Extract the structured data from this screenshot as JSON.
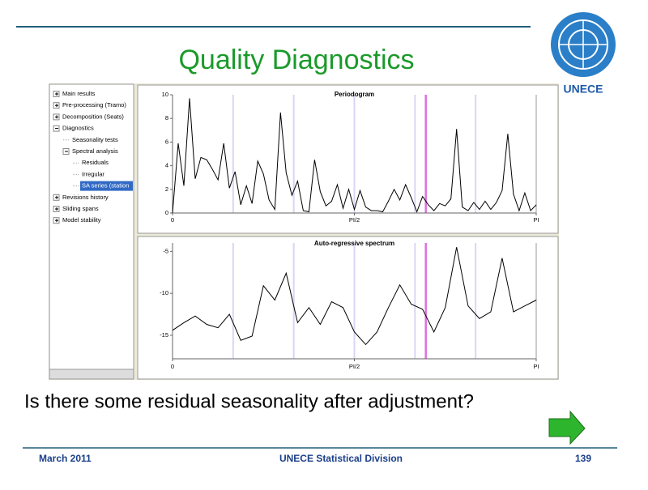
{
  "header": {
    "title": "Quality Diagnostics",
    "logo_label": "UNECE"
  },
  "tree": {
    "items": [
      "Main results",
      "Pre-processing (Tramo)",
      "Decomposition (Seats)",
      "Diagnostics",
      "Seasonality tests",
      "Spectral analysis",
      "Residuals",
      "Irregular",
      "SA series (station",
      "Revisions history",
      "Sliding spans",
      "Model stability"
    ]
  },
  "chart_data": [
    {
      "type": "line",
      "title": "Periodogram",
      "color": "#000000",
      "x": [
        0,
        0.049,
        0.098,
        0.147,
        0.196,
        0.245,
        0.295,
        0.344,
        0.393,
        0.442,
        0.491,
        0.54,
        0.589,
        0.638,
        0.687,
        0.736,
        0.785,
        0.834,
        0.884,
        0.933,
        0.982,
        1.031,
        1.08,
        1.129,
        1.178,
        1.227,
        1.276,
        1.325,
        1.374,
        1.424,
        1.473,
        1.522,
        1.571,
        1.62,
        1.669,
        1.718,
        1.767,
        1.816,
        1.865,
        1.914,
        1.963,
        2.013,
        2.062,
        2.111,
        2.16,
        2.209,
        2.258,
        2.307,
        2.356,
        2.405,
        2.454,
        2.503,
        2.553,
        2.602,
        2.651,
        2.7,
        2.749,
        2.798,
        2.847,
        2.896,
        2.945,
        2.994,
        3.043,
        3.093,
        3.142
      ],
      "values": [
        0,
        5.9,
        2.3,
        9.7,
        2.9,
        4.7,
        4.5,
        3.7,
        2.8,
        5.9,
        2.1,
        3.5,
        0.7,
        2.3,
        0.8,
        4.4,
        3.3,
        1.1,
        0.3,
        8.5,
        3.4,
        1.5,
        2.7,
        0.2,
        0.1,
        4.5,
        1.8,
        0.6,
        1.0,
        2.4,
        0.4,
        2.0,
        0.3,
        1.9,
        0.5,
        0.2,
        0.2,
        0.1,
        1.0,
        2.0,
        1.1,
        2.4,
        1.3,
        0.1,
        1.4,
        0.7,
        0.2,
        0.8,
        0.6,
        1.2,
        7.1,
        0.5,
        0.2,
        0.9,
        0.3,
        1.0,
        0.3,
        0.9,
        1.9,
        6.7,
        1.6,
        0.2,
        1.7,
        0.2,
        0.7
      ],
      "xlim": [
        0,
        3.1416
      ],
      "xticks": [
        0,
        {
          "value": 1.5708,
          "label": "PI/2"
        },
        {
          "value": 3.1416,
          "label": "PI"
        }
      ],
      "ylim": [
        0,
        10
      ],
      "yticks": [
        0,
        2,
        4,
        6,
        8,
        10
      ],
      "reference_lines": {
        "seasonal": {
          "color": "#dcd4f4",
          "x": [
            0.5236,
            1.0472,
            1.5708,
            2.0944,
            2.618
          ]
        },
        "trading_day": {
          "color": "#e070e0",
          "x": [
            2.188
          ]
        }
      }
    },
    {
      "type": "line",
      "title": "Auto-regressive spectrum",
      "color": "#000000",
      "x": [
        0,
        0.098,
        0.196,
        0.295,
        0.393,
        0.491,
        0.589,
        0.687,
        0.785,
        0.884,
        0.982,
        1.08,
        1.178,
        1.276,
        1.374,
        1.473,
        1.571,
        1.669,
        1.767,
        1.865,
        1.963,
        2.062,
        2.16,
        2.258,
        2.356,
        2.454,
        2.553,
        2.651,
        2.749,
        2.847,
        2.945,
        3.043,
        3.142
      ],
      "values": [
        -14.4,
        -13.5,
        -12.7,
        -13.7,
        -14.1,
        -12.5,
        -15.6,
        -15.1,
        -9.1,
        -10.8,
        -7.6,
        -13.5,
        -11.7,
        -13.7,
        -11.0,
        -11.7,
        -14.6,
        -16.1,
        -14.6,
        -11.7,
        -9.0,
        -11.3,
        -11.9,
        -14.6,
        -11.7,
        -4.5,
        -11.5,
        -13.0,
        -12.2,
        -5.8,
        -12.2,
        -11.5,
        -10.8
      ],
      "xlim": [
        0,
        3.1416
      ],
      "xticks": [
        0,
        {
          "value": 1.5708,
          "label": "PI/2"
        },
        {
          "value": 3.1416,
          "label": "PI"
        }
      ],
      "ylim": [
        -17.8,
        -4
      ],
      "yticks": [
        -15,
        -10,
        -5
      ],
      "reference_lines": {
        "seasonal": {
          "color": "#dcd4f4",
          "x": [
            0.5236,
            1.0472,
            1.5708,
            2.0944,
            2.618
          ]
        },
        "trading_day": {
          "color": "#e070e0",
          "x": [
            2.188
          ]
        }
      }
    }
  ],
  "question": "Is there some residual seasonality after adjustment?",
  "footer": {
    "date": "March 2011",
    "org": "UNECE Statistical Division",
    "page": "139"
  }
}
